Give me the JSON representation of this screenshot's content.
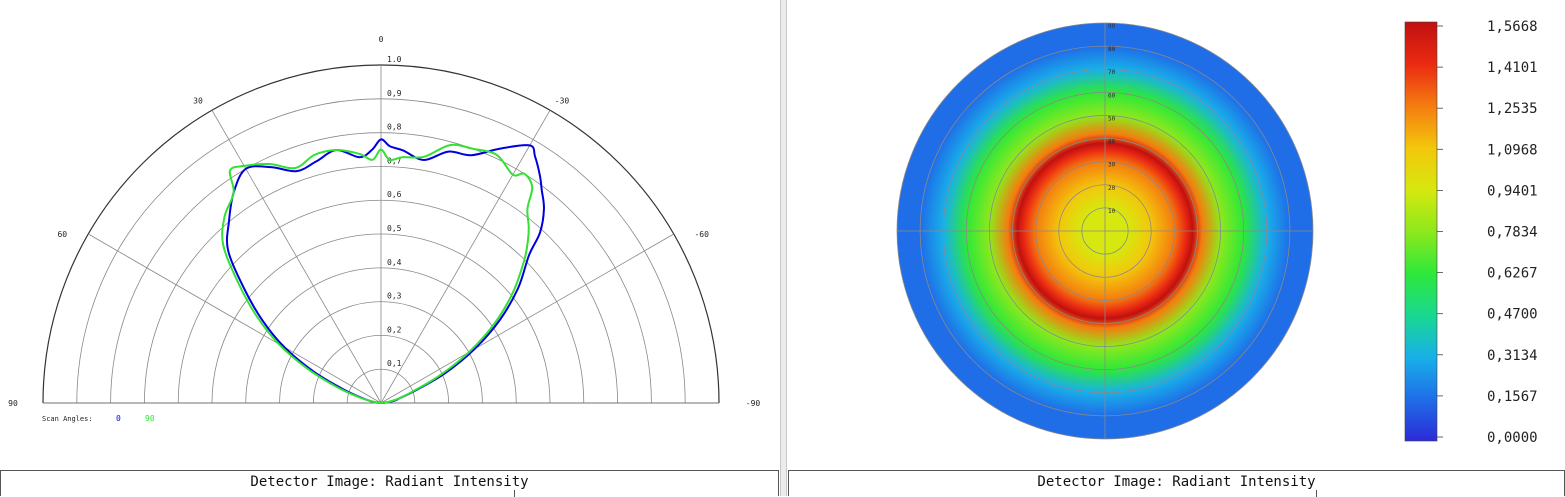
{
  "chart_data": [
    {
      "type": "polar-line",
      "angle_labels": [
        "0",
        "30",
        "-30",
        "60",
        "-60",
        "90",
        "-90"
      ],
      "angle_values": [
        0,
        30,
        -30,
        60,
        -60,
        90,
        -90
      ],
      "radial_labels": [
        "1.0",
        "0,9",
        "0,8",
        "0,7",
        "0,6",
        "0,5",
        "0,4",
        "0,3",
        "0,2",
        "0,1"
      ],
      "radial_values": [
        1.0,
        0.9,
        0.8,
        0.7,
        0.6,
        0.5,
        0.4,
        0.3,
        0.2,
        0.1
      ],
      "rlim": [
        0,
        1.0
      ],
      "legend_title": "Scan Angles:",
      "series": [
        {
          "name": "0",
          "color": "#0000dd",
          "angles": [
            -86,
            -80,
            -75,
            -70,
            -65,
            -60,
            -55,
            -50,
            -45,
            -43,
            -40,
            -37,
            -35,
            -32,
            -30,
            -25,
            -20,
            -15,
            -10,
            -5,
            -2,
            0,
            2,
            5,
            10,
            15,
            20,
            25,
            30,
            35,
            40,
            45,
            50,
            55,
            60,
            65,
            70,
            75,
            80,
            86
          ],
          "values": [
            0.01,
            0.04,
            0.06,
            0.11,
            0.21,
            0.32,
            0.43,
            0.53,
            0.62,
            0.69,
            0.75,
            0.79,
            0.82,
            0.86,
            0.88,
            0.83,
            0.78,
            0.77,
            0.73,
            0.75,
            0.76,
            0.78,
            0.75,
            0.73,
            0.76,
            0.74,
            0.73,
            0.77,
            0.8,
            0.76,
            0.7,
            0.64,
            0.53,
            0.43,
            0.33,
            0.22,
            0.12,
            0.06,
            0.03,
            0.01
          ]
        },
        {
          "name": "90",
          "color": "#33e033",
          "angles": [
            -86,
            -80,
            -75,
            -70,
            -65,
            -60,
            -55,
            -50,
            -45,
            -42,
            -40,
            -37,
            -35,
            -32,
            -30,
            -25,
            -20,
            -15,
            -10,
            -5,
            -2,
            0,
            2,
            5,
            10,
            15,
            20,
            25,
            30,
            33,
            35,
            40,
            45,
            50,
            55,
            60,
            65,
            70,
            75,
            80,
            86
          ],
          "values": [
            0.01,
            0.03,
            0.06,
            0.1,
            0.19,
            0.3,
            0.41,
            0.51,
            0.6,
            0.65,
            0.68,
            0.72,
            0.78,
            0.8,
            0.78,
            0.81,
            0.8,
            0.79,
            0.74,
            0.73,
            0.72,
            0.75,
            0.72,
            0.74,
            0.76,
            0.76,
            0.74,
            0.78,
            0.81,
            0.82,
            0.76,
            0.72,
            0.66,
            0.55,
            0.45,
            0.35,
            0.24,
            0.14,
            0.07,
            0.03,
            0.01
          ]
        }
      ]
    },
    {
      "type": "heatmap",
      "ring_labels": [
        "90",
        "80",
        "70",
        "60",
        "50",
        "40",
        "30",
        "20",
        "10"
      ],
      "ring_values": [
        90,
        80,
        70,
        60,
        50,
        40,
        30,
        20,
        10
      ],
      "colorbar_labels": [
        "1,5668",
        "1,4101",
        "1,2535",
        "1,0968",
        "0,9401",
        "0,7834",
        "0,6267",
        "0,4700",
        "0,3134",
        "0,1567",
        "0,0000"
      ],
      "colorbar_range": [
        0,
        1.5668
      ],
      "colorbar_colors": [
        "#2b2bd6",
        "#1f6ee8",
        "#18b0e8",
        "#19d890",
        "#2ee83a",
        "#8ee81c",
        "#d6e80f",
        "#f3c60c",
        "#f47c10",
        "#ea2a12",
        "#c01010"
      ],
      "radial_profile": {
        "theta": [
          0,
          10,
          20,
          30,
          35,
          38,
          42,
          50,
          60,
          70,
          80,
          90
        ],
        "intensity": [
          0.97,
          1.01,
          1.08,
          1.27,
          1.47,
          1.56,
          1.18,
          0.85,
          0.62,
          0.38,
          0.21,
          0.12
        ]
      }
    }
  ],
  "captions": {
    "left": "Detector Image: Radiant Intensity",
    "right": "Detector Image: Radiant Intensity"
  }
}
